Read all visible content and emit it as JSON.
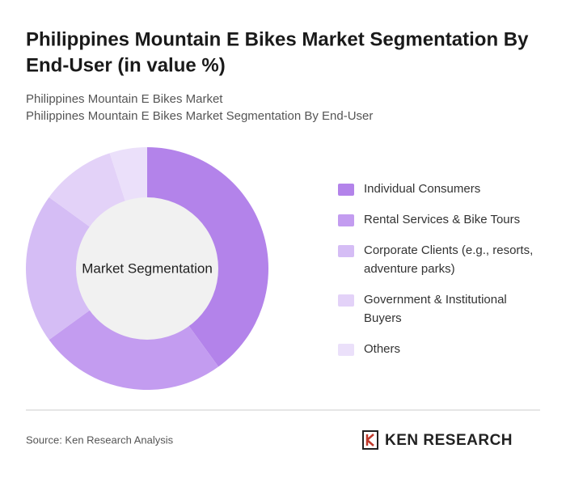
{
  "chart_data": {
    "type": "donut",
    "title": [
      "Philippines Mountain E Bikes Market Segmentation By",
      "End-User (in value %)"
    ],
    "subtitle": [
      "Philippines Mountain E Bikes Market",
      "Philippines Mountain E Bikes Market Segmentation By End-User"
    ],
    "center_label": "Market Segmentation",
    "categories": [
      [
        "Individual Consumers"
      ],
      [
        "Rental Services & Bike Tours"
      ],
      [
        "Corporate Clients (e.g., resorts,",
        "adventure parks)"
      ],
      [
        "Government & Institutional",
        "Buyers"
      ],
      [
        "Others"
      ]
    ],
    "values": [
      40,
      25,
      20,
      10,
      5
    ],
    "colors": [
      "#b383ea",
      "#c39cf0",
      "#d5bdf5",
      "#e3d2f8",
      "#ebe0fa"
    ],
    "source": "Source: Ken Research Analysis",
    "logo": "KEN RESEARCH"
  }
}
